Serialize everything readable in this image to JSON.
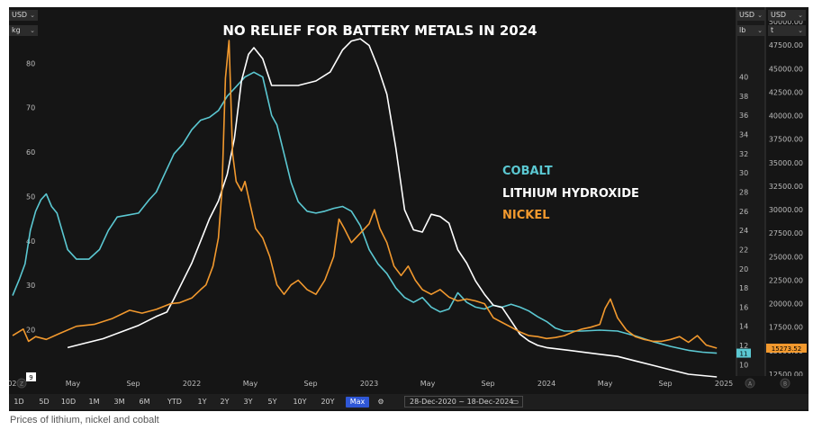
{
  "chart_data": {
    "type": "line",
    "title": "NO RELIEF FOR BATTERY METALS IN 2024",
    "caption": "Prices of lithium, nickel and cobalt",
    "x_range": [
      "2020-12-28",
      "2024-12-18"
    ],
    "x_ticks": [
      {
        "t": 2021.0,
        "label": "021"
      },
      {
        "t": 2021.33,
        "label": "May"
      },
      {
        "t": 2021.67,
        "label": "Sep"
      },
      {
        "t": 2022.0,
        "label": "2022"
      },
      {
        "t": 2022.33,
        "label": "May"
      },
      {
        "t": 2022.67,
        "label": "Sep"
      },
      {
        "t": 2023.0,
        "label": "2023"
      },
      {
        "t": 2023.33,
        "label": "May"
      },
      {
        "t": 2023.67,
        "label": "Sep"
      },
      {
        "t": 2024.0,
        "label": "2024"
      },
      {
        "t": 2024.33,
        "label": "May"
      },
      {
        "t": 2024.67,
        "label": "Sep"
      },
      {
        "t": 2025.0,
        "label": "2025"
      }
    ],
    "left_axis": {
      "currency": "USD",
      "unit": "kg",
      "range": [
        10,
        92
      ],
      "ticks": [
        20,
        30,
        40,
        50,
        60,
        70,
        80
      ],
      "last_value": "9"
    },
    "mid_axis": {
      "currency": "USD",
      "unit": "lb",
      "range": [
        9,
        47
      ],
      "ticks": [
        10,
        12,
        14,
        16,
        18,
        20,
        22,
        24,
        26,
        28,
        30,
        32,
        34,
        36,
        38,
        40
      ],
      "last_value": "11"
    },
    "right_axis": {
      "currency": "USD",
      "unit": "t",
      "range": [
        12500,
        51250
      ],
      "ticks": [
        "12500.00",
        "15000.00",
        "17500.00",
        "20000.00",
        "22500.00",
        "25000.00",
        "27500.00",
        "30000.00",
        "32500.00",
        "35000.00",
        "37500.00",
        "40000.00",
        "42500.00",
        "45000.00",
        "47500.00",
        "50000.00"
      ],
      "last_value": "15273.52"
    },
    "series": [
      {
        "name": "COBALT",
        "color": "#5bc8d2",
        "axis": "mid",
        "points": [
          [
            2020.99,
            17.2
          ],
          [
            2021.03,
            19.0
          ],
          [
            2021.06,
            20.5
          ],
          [
            2021.09,
            24.0
          ],
          [
            2021.12,
            26.0
          ],
          [
            2021.15,
            27.2
          ],
          [
            2021.18,
            27.8
          ],
          [
            2021.21,
            26.5
          ],
          [
            2021.24,
            25.8
          ],
          [
            2021.3,
            22.0
          ],
          [
            2021.35,
            21.0
          ],
          [
            2021.42,
            21.0
          ],
          [
            2021.48,
            22.0
          ],
          [
            2021.53,
            24.0
          ],
          [
            2021.58,
            25.4
          ],
          [
            2021.64,
            25.6
          ],
          [
            2021.7,
            25.8
          ],
          [
            2021.76,
            27.2
          ],
          [
            2021.8,
            28.0
          ],
          [
            2021.85,
            30.0
          ],
          [
            2021.9,
            32.0
          ],
          [
            2021.95,
            33.0
          ],
          [
            2022.0,
            34.5
          ],
          [
            2022.05,
            35.5
          ],
          [
            2022.1,
            35.8
          ],
          [
            2022.15,
            36.5
          ],
          [
            2022.2,
            38.0
          ],
          [
            2022.25,
            39.0
          ],
          [
            2022.3,
            40.0
          ],
          [
            2022.35,
            40.5
          ],
          [
            2022.4,
            40.0
          ],
          [
            2022.45,
            36.0
          ],
          [
            2022.48,
            35.0
          ],
          [
            2022.52,
            32.0
          ],
          [
            2022.56,
            29.0
          ],
          [
            2022.6,
            27.0
          ],
          [
            2022.65,
            26.0
          ],
          [
            2022.7,
            25.8
          ],
          [
            2022.75,
            26.0
          ],
          [
            2022.8,
            26.3
          ],
          [
            2022.85,
            26.5
          ],
          [
            2022.9,
            26.0
          ],
          [
            2022.95,
            24.5
          ],
          [
            2023.0,
            22.0
          ],
          [
            2023.05,
            20.5
          ],
          [
            2023.1,
            19.5
          ],
          [
            2023.15,
            18.0
          ],
          [
            2023.2,
            17.0
          ],
          [
            2023.25,
            16.5
          ],
          [
            2023.3,
            17.0
          ],
          [
            2023.35,
            16.0
          ],
          [
            2023.4,
            15.5
          ],
          [
            2023.45,
            15.8
          ],
          [
            2023.5,
            17.5
          ],
          [
            2023.55,
            16.5
          ],
          [
            2023.6,
            16.0
          ],
          [
            2023.65,
            15.8
          ],
          [
            2023.7,
            16.2
          ],
          [
            2023.75,
            16.0
          ],
          [
            2023.8,
            16.3
          ],
          [
            2023.85,
            16.0
          ],
          [
            2023.9,
            15.6
          ],
          [
            2023.95,
            15.0
          ],
          [
            2024.0,
            14.5
          ],
          [
            2024.05,
            13.8
          ],
          [
            2024.1,
            13.5
          ],
          [
            2024.2,
            13.5
          ],
          [
            2024.3,
            13.6
          ],
          [
            2024.4,
            13.5
          ],
          [
            2024.5,
            13.0
          ],
          [
            2024.6,
            12.4
          ],
          [
            2024.7,
            11.9
          ],
          [
            2024.8,
            11.5
          ],
          [
            2024.88,
            11.3
          ],
          [
            2024.96,
            11.2
          ]
        ]
      },
      {
        "name": "LITHIUM HYDROXIDE",
        "color": "#ffffff",
        "axis": "left",
        "points": [
          [
            2021.3,
            16.0
          ],
          [
            2021.4,
            17.0
          ],
          [
            2021.5,
            18.0
          ],
          [
            2021.6,
            19.5
          ],
          [
            2021.7,
            21.0
          ],
          [
            2021.8,
            23.0
          ],
          [
            2021.86,
            24.0
          ],
          [
            2021.9,
            27.0
          ],
          [
            2021.95,
            31.0
          ],
          [
            2022.0,
            35.0
          ],
          [
            2022.05,
            40.0
          ],
          [
            2022.1,
            45.0
          ],
          [
            2022.15,
            49.0
          ],
          [
            2022.2,
            55.0
          ],
          [
            2022.24,
            63.0
          ],
          [
            2022.28,
            76.0
          ],
          [
            2022.32,
            82.0
          ],
          [
            2022.35,
            83.5
          ],
          [
            2022.4,
            81.0
          ],
          [
            2022.45,
            75.0
          ],
          [
            2022.5,
            75.0
          ],
          [
            2022.6,
            75.0
          ],
          [
            2022.7,
            76.0
          ],
          [
            2022.78,
            78.0
          ],
          [
            2022.85,
            83.0
          ],
          [
            2022.9,
            85.0
          ],
          [
            2022.95,
            85.5
          ],
          [
            2023.0,
            84.0
          ],
          [
            2023.05,
            79.0
          ],
          [
            2023.1,
            73.0
          ],
          [
            2023.15,
            61.0
          ],
          [
            2023.2,
            47.0
          ],
          [
            2023.25,
            42.5
          ],
          [
            2023.3,
            42.0
          ],
          [
            2023.35,
            46.0
          ],
          [
            2023.4,
            45.5
          ],
          [
            2023.45,
            44.0
          ],
          [
            2023.5,
            38.0
          ],
          [
            2023.55,
            35.0
          ],
          [
            2023.6,
            31.0
          ],
          [
            2023.65,
            28.0
          ],
          [
            2023.7,
            25.5
          ],
          [
            2023.75,
            25.0
          ],
          [
            2023.8,
            22.0
          ],
          [
            2023.85,
            19.0
          ],
          [
            2023.9,
            17.5
          ],
          [
            2023.95,
            16.5
          ],
          [
            2024.0,
            16.0
          ],
          [
            2024.1,
            15.5
          ],
          [
            2024.2,
            15.0
          ],
          [
            2024.3,
            14.5
          ],
          [
            2024.4,
            14.0
          ],
          [
            2024.5,
            13.0
          ],
          [
            2024.6,
            12.0
          ],
          [
            2024.7,
            11.0
          ],
          [
            2024.8,
            10.0
          ],
          [
            2024.88,
            9.7
          ],
          [
            2024.96,
            9.4
          ]
        ]
      },
      {
        "name": "NICKEL",
        "color": "#f2992e",
        "axis": "right",
        "points": [
          [
            2020.99,
            16600
          ],
          [
            2021.05,
            17300
          ],
          [
            2021.08,
            16000
          ],
          [
            2021.12,
            16500
          ],
          [
            2021.18,
            16200
          ],
          [
            2021.25,
            16800
          ],
          [
            2021.35,
            17600
          ],
          [
            2021.45,
            17800
          ],
          [
            2021.55,
            18400
          ],
          [
            2021.65,
            19300
          ],
          [
            2021.72,
            19000
          ],
          [
            2021.8,
            19400
          ],
          [
            2021.88,
            20000
          ],
          [
            2021.93,
            20100
          ],
          [
            2022.0,
            20600
          ],
          [
            2022.05,
            21500
          ],
          [
            2022.08,
            22000
          ],
          [
            2022.12,
            24000
          ],
          [
            2022.15,
            27000
          ],
          [
            2022.17,
            32000
          ],
          [
            2022.19,
            44000
          ],
          [
            2022.21,
            48000
          ],
          [
            2022.23,
            36000
          ],
          [
            2022.25,
            33000
          ],
          [
            2022.28,
            32000
          ],
          [
            2022.3,
            33000
          ],
          [
            2022.33,
            30500
          ],
          [
            2022.36,
            28000
          ],
          [
            2022.4,
            27000
          ],
          [
            2022.44,
            25000
          ],
          [
            2022.48,
            22000
          ],
          [
            2022.52,
            21000
          ],
          [
            2022.56,
            22000
          ],
          [
            2022.6,
            22500
          ],
          [
            2022.65,
            21500
          ],
          [
            2022.7,
            21000
          ],
          [
            2022.75,
            22500
          ],
          [
            2022.8,
            25000
          ],
          [
            2022.83,
            29000
          ],
          [
            2022.86,
            28000
          ],
          [
            2022.9,
            26500
          ],
          [
            2022.95,
            27500
          ],
          [
            2023.0,
            28500
          ],
          [
            2023.03,
            30000
          ],
          [
            2023.06,
            28000
          ],
          [
            2023.1,
            26500
          ],
          [
            2023.14,
            24000
          ],
          [
            2023.18,
            23000
          ],
          [
            2023.22,
            24000
          ],
          [
            2023.26,
            22500
          ],
          [
            2023.3,
            21500
          ],
          [
            2023.35,
            21000
          ],
          [
            2023.4,
            21500
          ],
          [
            2023.45,
            20700
          ],
          [
            2023.5,
            20300
          ],
          [
            2023.55,
            20500
          ],
          [
            2023.6,
            20300
          ],
          [
            2023.65,
            20000
          ],
          [
            2023.7,
            18500
          ],
          [
            2023.75,
            18000
          ],
          [
            2023.8,
            17500
          ],
          [
            2023.85,
            17000
          ],
          [
            2023.9,
            16600
          ],
          [
            2023.95,
            16500
          ],
          [
            2024.0,
            16300
          ],
          [
            2024.05,
            16400
          ],
          [
            2024.1,
            16600
          ],
          [
            2024.15,
            17000
          ],
          [
            2024.2,
            17300
          ],
          [
            2024.25,
            17500
          ],
          [
            2024.3,
            17800
          ],
          [
            2024.33,
            19500
          ],
          [
            2024.36,
            20500
          ],
          [
            2024.4,
            18500
          ],
          [
            2024.45,
            17200
          ],
          [
            2024.5,
            16500
          ],
          [
            2024.55,
            16200
          ],
          [
            2024.6,
            16000
          ],
          [
            2024.65,
            16000
          ],
          [
            2024.7,
            16200
          ],
          [
            2024.75,
            16500
          ],
          [
            2024.8,
            15900
          ],
          [
            2024.85,
            16600
          ],
          [
            2024.9,
            15600
          ],
          [
            2024.96,
            15273
          ]
        ]
      }
    ]
  },
  "legend": {
    "cobalt": "COBALT",
    "lithium": "LITHIUM HYDROXIDE",
    "nickel": "NICKEL"
  },
  "selectors": {
    "left_currency": "USD",
    "left_unit": "kg",
    "mid_currency": "USD",
    "mid_unit": "lb",
    "right_currency": "USD",
    "right_unit": "t"
  },
  "axis_footer": {
    "left_z": "Z",
    "mid_a": "A",
    "right_b": "B"
  },
  "range_buttons": [
    "1D",
    "5D",
    "10D",
    "1M",
    "3M",
    "6M",
    "YTD",
    "1Y",
    "2Y",
    "3Y",
    "5Y",
    "10Y",
    "20Y",
    "Max"
  ],
  "active_range": "Max",
  "date_range_text": "28-Dec-2020  ~  18-Dec-2024"
}
